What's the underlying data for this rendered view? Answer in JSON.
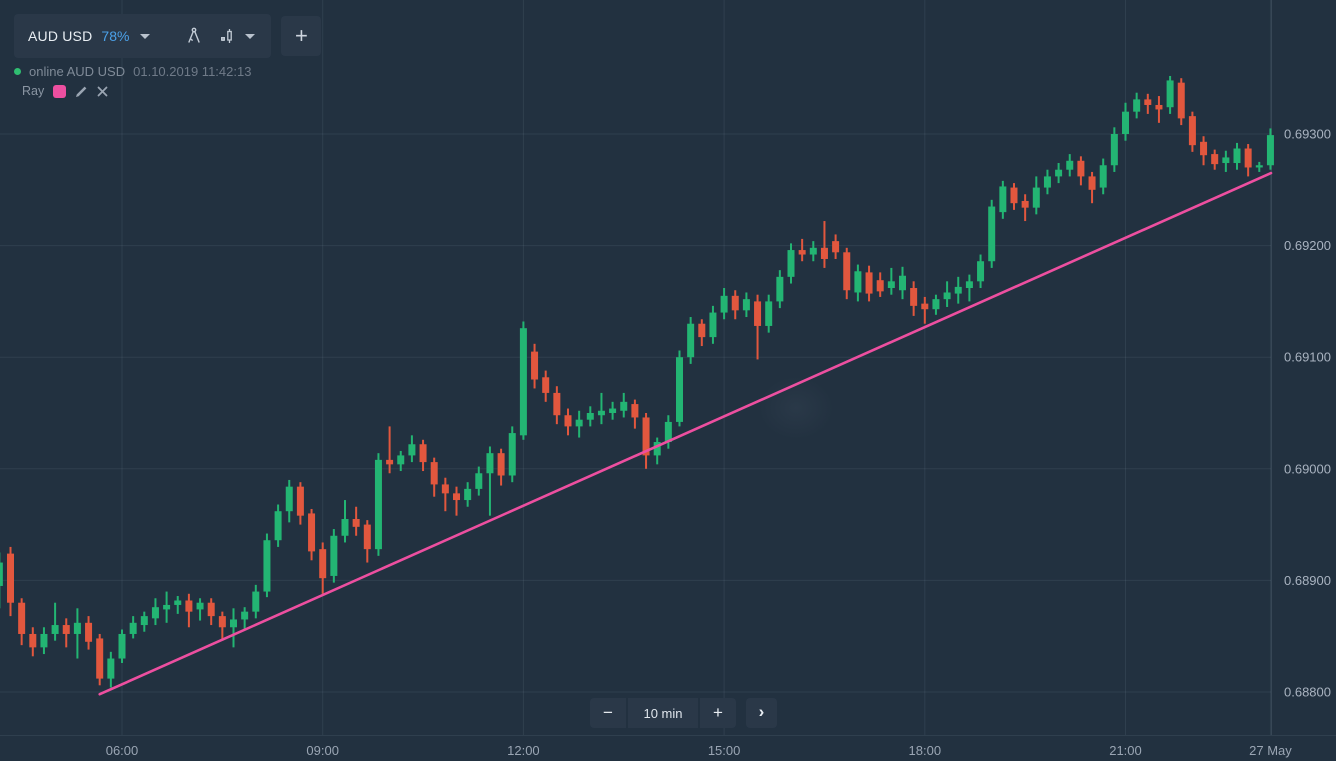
{
  "toolbar": {
    "instrument": "AUD USD",
    "payout": "78%",
    "add_label": "+"
  },
  "status": {
    "state": "online",
    "instrument": "AUD USD",
    "timestamp": "01.10.2019 11:42:13"
  },
  "drawing_tool": {
    "name": "Ray",
    "color": "#ed4fa0"
  },
  "timeframe": {
    "decrease": "−",
    "value": "10 min",
    "increase": "+",
    "forward": "›"
  },
  "colors": {
    "background": "#223140",
    "bull": "#23b573",
    "bear": "#e2573e",
    "ray": "#ed4fa0",
    "payout_accent": "#4ba1e8",
    "online_dot": "#2fbe71",
    "grid": "rgba(168,186,208,0.10)",
    "separator": "rgba(168,186,208,0.16)",
    "price_text": "#a9b3c0",
    "time_text": "#9aa5b3"
  },
  "chart_data": {
    "type": "candlestick",
    "instrument": "AUD USD",
    "interval": "10 min",
    "start_time": "04:10",
    "interval_min": 10,
    "columns": [
      "open",
      "high",
      "low",
      "close"
    ],
    "ohlc": [
      [
        0.68895,
        0.68925,
        0.68875,
        0.68916
      ],
      [
        0.68924,
        0.6893,
        0.68868,
        0.6888
      ],
      [
        0.6888,
        0.68884,
        0.68842,
        0.68852
      ],
      [
        0.68852,
        0.68858,
        0.68832,
        0.6884
      ],
      [
        0.6884,
        0.68858,
        0.68834,
        0.68852
      ],
      [
        0.68852,
        0.6888,
        0.68846,
        0.6886
      ],
      [
        0.6886,
        0.68866,
        0.6884,
        0.68852
      ],
      [
        0.68852,
        0.68875,
        0.6883,
        0.68862
      ],
      [
        0.68862,
        0.68868,
        0.68838,
        0.68845
      ],
      [
        0.68848,
        0.68852,
        0.68806,
        0.68812
      ],
      [
        0.68812,
        0.68836,
        0.68804,
        0.6883
      ],
      [
        0.6883,
        0.68856,
        0.68826,
        0.68852
      ],
      [
        0.68852,
        0.68868,
        0.68848,
        0.68862
      ],
      [
        0.6886,
        0.68872,
        0.68854,
        0.68868
      ],
      [
        0.68866,
        0.68884,
        0.6886,
        0.68876
      ],
      [
        0.68874,
        0.6889,
        0.68862,
        0.68878
      ],
      [
        0.68878,
        0.68886,
        0.6887,
        0.68882
      ],
      [
        0.68882,
        0.68888,
        0.68858,
        0.68872
      ],
      [
        0.68874,
        0.68884,
        0.68864,
        0.6888
      ],
      [
        0.6888,
        0.68884,
        0.6886,
        0.68868
      ],
      [
        0.68868,
        0.68872,
        0.68846,
        0.68858
      ],
      [
        0.68858,
        0.68875,
        0.6884,
        0.68865
      ],
      [
        0.68865,
        0.68876,
        0.68856,
        0.68872
      ],
      [
        0.68872,
        0.68896,
        0.68866,
        0.6889
      ],
      [
        0.6889,
        0.68942,
        0.68885,
        0.68936
      ],
      [
        0.68936,
        0.68968,
        0.6893,
        0.68962
      ],
      [
        0.68962,
        0.6899,
        0.68952,
        0.68984
      ],
      [
        0.68984,
        0.68988,
        0.6895,
        0.68958
      ],
      [
        0.6896,
        0.68964,
        0.68918,
        0.68926
      ],
      [
        0.68928,
        0.68934,
        0.68888,
        0.68902
      ],
      [
        0.68904,
        0.68946,
        0.68898,
        0.6894
      ],
      [
        0.6894,
        0.68972,
        0.68934,
        0.68955
      ],
      [
        0.68955,
        0.68966,
        0.6894,
        0.68948
      ],
      [
        0.6895,
        0.68954,
        0.68916,
        0.68928
      ],
      [
        0.68928,
        0.69014,
        0.68922,
        0.69008
      ],
      [
        0.69008,
        0.69038,
        0.68996,
        0.69004
      ],
      [
        0.69004,
        0.69016,
        0.68998,
        0.69012
      ],
      [
        0.69012,
        0.6903,
        0.69006,
        0.69022
      ],
      [
        0.69022,
        0.69026,
        0.68998,
        0.69006
      ],
      [
        0.69006,
        0.6901,
        0.68975,
        0.68986
      ],
      [
        0.68986,
        0.68992,
        0.68962,
        0.68978
      ],
      [
        0.68978,
        0.68984,
        0.68958,
        0.68972
      ],
      [
        0.68972,
        0.68988,
        0.68966,
        0.68982
      ],
      [
        0.68982,
        0.69002,
        0.68976,
        0.68996
      ],
      [
        0.68996,
        0.6902,
        0.68958,
        0.69014
      ],
      [
        0.69014,
        0.69018,
        0.68985,
        0.68994
      ],
      [
        0.68994,
        0.69038,
        0.68988,
        0.69032
      ],
      [
        0.6903,
        0.69132,
        0.69026,
        0.69126
      ],
      [
        0.69105,
        0.69112,
        0.69072,
        0.6908
      ],
      [
        0.69082,
        0.69088,
        0.6906,
        0.69068
      ],
      [
        0.69068,
        0.69074,
        0.6904,
        0.69048
      ],
      [
        0.69048,
        0.69054,
        0.6903,
        0.69038
      ],
      [
        0.69038,
        0.69052,
        0.69028,
        0.69044
      ],
      [
        0.69044,
        0.69056,
        0.69038,
        0.6905
      ],
      [
        0.69048,
        0.69068,
        0.6904,
        0.69052
      ],
      [
        0.6905,
        0.6906,
        0.69044,
        0.69054
      ],
      [
        0.69052,
        0.69068,
        0.69046,
        0.6906
      ],
      [
        0.69058,
        0.69062,
        0.69036,
        0.69046
      ],
      [
        0.69046,
        0.6905,
        0.69,
        0.69012
      ],
      [
        0.69012,
        0.69028,
        0.69004,
        0.69024
      ],
      [
        0.69024,
        0.69048,
        0.69018,
        0.69042
      ],
      [
        0.69042,
        0.69106,
        0.69038,
        0.691
      ],
      [
        0.691,
        0.69136,
        0.69094,
        0.6913
      ],
      [
        0.6913,
        0.69134,
        0.6911,
        0.69118
      ],
      [
        0.69118,
        0.69146,
        0.69112,
        0.6914
      ],
      [
        0.6914,
        0.69162,
        0.69134,
        0.69155
      ],
      [
        0.69155,
        0.6916,
        0.69134,
        0.69142
      ],
      [
        0.69142,
        0.69158,
        0.69136,
        0.69152
      ],
      [
        0.6915,
        0.69156,
        0.69098,
        0.69128
      ],
      [
        0.69128,
        0.69156,
        0.69122,
        0.6915
      ],
      [
        0.6915,
        0.69178,
        0.69144,
        0.69172
      ],
      [
        0.69172,
        0.69202,
        0.69166,
        0.69196
      ],
      [
        0.69196,
        0.69206,
        0.69186,
        0.69192
      ],
      [
        0.69192,
        0.69204,
        0.69186,
        0.69198
      ],
      [
        0.69198,
        0.69222,
        0.6918,
        0.69188
      ],
      [
        0.69204,
        0.6921,
        0.69188,
        0.69194
      ],
      [
        0.69194,
        0.69198,
        0.69152,
        0.6916
      ],
      [
        0.69158,
        0.69183,
        0.6915,
        0.69177
      ],
      [
        0.69176,
        0.69182,
        0.6915,
        0.69157
      ],
      [
        0.69169,
        0.69176,
        0.69154,
        0.69159
      ],
      [
        0.69162,
        0.6918,
        0.69156,
        0.69168
      ],
      [
        0.6916,
        0.69181,
        0.69152,
        0.69173
      ],
      [
        0.69162,
        0.69168,
        0.69137,
        0.69146
      ],
      [
        0.69148,
        0.69154,
        0.6913,
        0.69143
      ],
      [
        0.69143,
        0.69156,
        0.69138,
        0.69152
      ],
      [
        0.69152,
        0.69168,
        0.69145,
        0.69158
      ],
      [
        0.69157,
        0.69172,
        0.69148,
        0.69163
      ],
      [
        0.69162,
        0.69174,
        0.6915,
        0.69168
      ],
      [
        0.69168,
        0.69192,
        0.69162,
        0.69186
      ],
      [
        0.69186,
        0.69241,
        0.6918,
        0.69235
      ],
      [
        0.6923,
        0.69258,
        0.69224,
        0.69253
      ],
      [
        0.69252,
        0.69256,
        0.69232,
        0.69238
      ],
      [
        0.6924,
        0.69246,
        0.69222,
        0.69234
      ],
      [
        0.69234,
        0.69262,
        0.69228,
        0.69252
      ],
      [
        0.69252,
        0.69268,
        0.69246,
        0.69262
      ],
      [
        0.69262,
        0.69274,
        0.69256,
        0.69268
      ],
      [
        0.69268,
        0.69282,
        0.69262,
        0.69276
      ],
      [
        0.69276,
        0.6928,
        0.69254,
        0.69262
      ],
      [
        0.69262,
        0.69266,
        0.69238,
        0.6925
      ],
      [
        0.69252,
        0.69278,
        0.69246,
        0.69272
      ],
      [
        0.69272,
        0.69306,
        0.69266,
        0.693
      ],
      [
        0.693,
        0.69328,
        0.69294,
        0.6932
      ],
      [
        0.6932,
        0.69337,
        0.69314,
        0.69331
      ],
      [
        0.69331,
        0.69336,
        0.69318,
        0.69326
      ],
      [
        0.69326,
        0.69334,
        0.6931,
        0.69322
      ],
      [
        0.69324,
        0.69352,
        0.69318,
        0.69348
      ],
      [
        0.69346,
        0.6935,
        0.69308,
        0.69314
      ],
      [
        0.69316,
        0.6932,
        0.69284,
        0.6929
      ],
      [
        0.69293,
        0.69298,
        0.69272,
        0.69281
      ],
      [
        0.69282,
        0.69286,
        0.69268,
        0.69273
      ],
      [
        0.69274,
        0.69285,
        0.69266,
        0.69279
      ],
      [
        0.69274,
        0.69292,
        0.69268,
        0.69287
      ],
      [
        0.69287,
        0.69291,
        0.69262,
        0.6927
      ],
      [
        0.6927,
        0.69275,
        0.69266,
        0.69272
      ],
      [
        0.69272,
        0.69305,
        0.69268,
        0.69299
      ]
    ],
    "y_axis": {
      "side": "right",
      "ticks": [
        {
          "label": "0.69300",
          "price": 0.693
        },
        {
          "label": "0.69200",
          "price": 0.692
        },
        {
          "label": "0.69100",
          "price": 0.691
        },
        {
          "label": "0.69000",
          "price": 0.69
        },
        {
          "label": "0.68900",
          "price": 0.689
        },
        {
          "label": "0.68800",
          "price": 0.688
        }
      ]
    },
    "x_axis": {
      "ticks": [
        {
          "label": "06:00",
          "idx": 11
        },
        {
          "label": "09:00",
          "idx": 29
        },
        {
          "label": "12:00",
          "idx": 47
        },
        {
          "label": "15:00",
          "idx": 65
        },
        {
          "label": "18:00",
          "idx": 83
        },
        {
          "label": "21:00",
          "idx": 101
        },
        {
          "label": "27 May",
          "idx": 114
        }
      ]
    },
    "ray": {
      "name": "Ray",
      "color": "#ed4fa0",
      "from": {
        "idx": 9,
        "price": 0.68798
      },
      "to": {
        "idx": 114.05,
        "price": 0.69265
      }
    }
  }
}
